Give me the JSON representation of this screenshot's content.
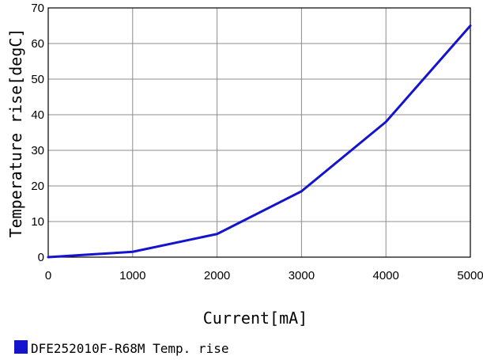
{
  "chart_data": {
    "type": "line",
    "xlabel": "Current[mA]",
    "ylabel": "Temperature rise[degC]",
    "xlim": [
      0,
      5000
    ],
    "ylim": [
      0,
      70
    ],
    "x_ticks": [
      "0",
      "1000",
      "2000",
      "3000",
      "4000",
      "5000"
    ],
    "y_ticks": [
      "0",
      "10",
      "20",
      "30",
      "40",
      "50",
      "60",
      "70"
    ],
    "grid": true,
    "legend_position": "bottom-left",
    "series": [
      {
        "name": "DFE252010F-R68M Temp. rise",
        "color": "#1414cc",
        "x": [
          0,
          1000,
          2000,
          3000,
          4000,
          5000
        ],
        "y": [
          0,
          1.5,
          6.5,
          18.5,
          38,
          65
        ]
      }
    ]
  }
}
